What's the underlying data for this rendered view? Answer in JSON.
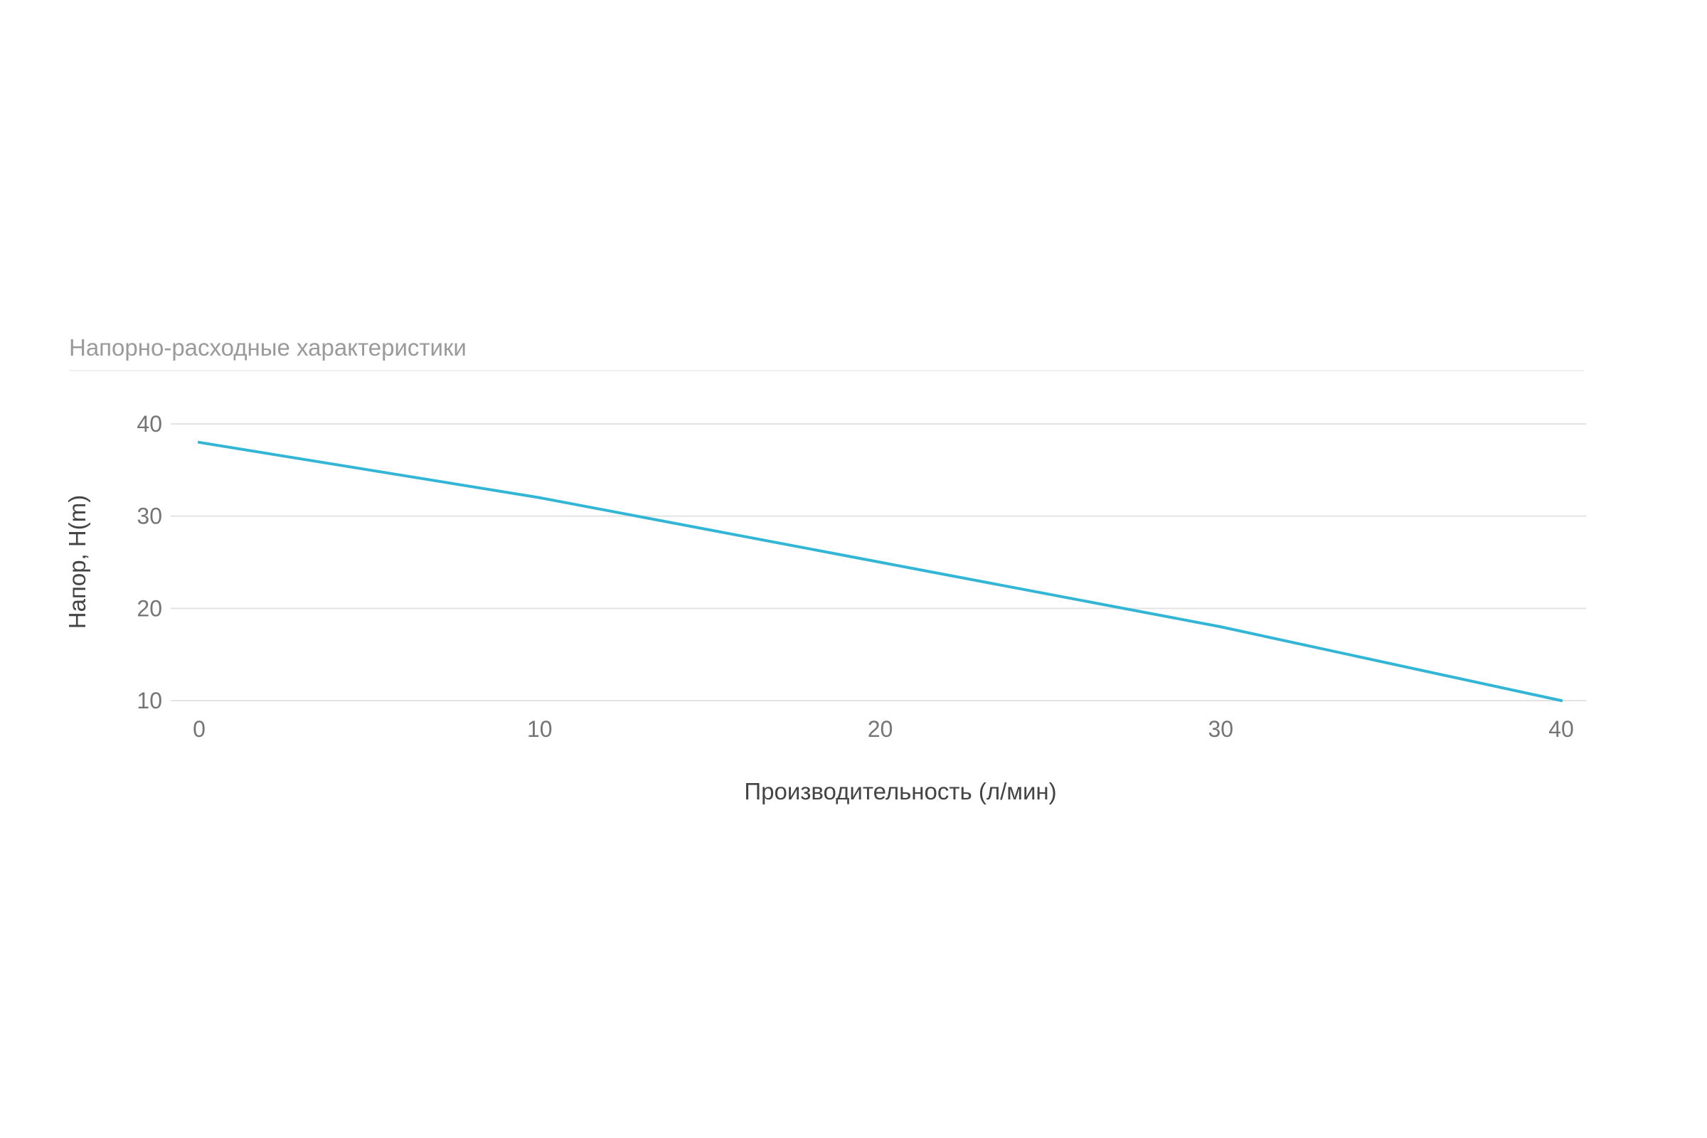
{
  "chart_data": {
    "type": "line",
    "title": "Напорно-расходные характеристики",
    "xlabel": "Производительность (л/мин)",
    "ylabel": "Напор, H(m)",
    "xlim": [
      0,
      40
    ],
    "ylim": [
      10,
      40
    ],
    "x_ticks": [
      "0",
      "10",
      "20",
      "30",
      "40"
    ],
    "y_ticks": [
      "40",
      "30",
      "20",
      "10"
    ],
    "grid": true,
    "series": [
      {
        "color": "#33b5d5",
        "x": [
          0,
          10,
          20,
          30,
          40
        ],
        "y": [
          38,
          32,
          25,
          18,
          10
        ]
      }
    ]
  }
}
